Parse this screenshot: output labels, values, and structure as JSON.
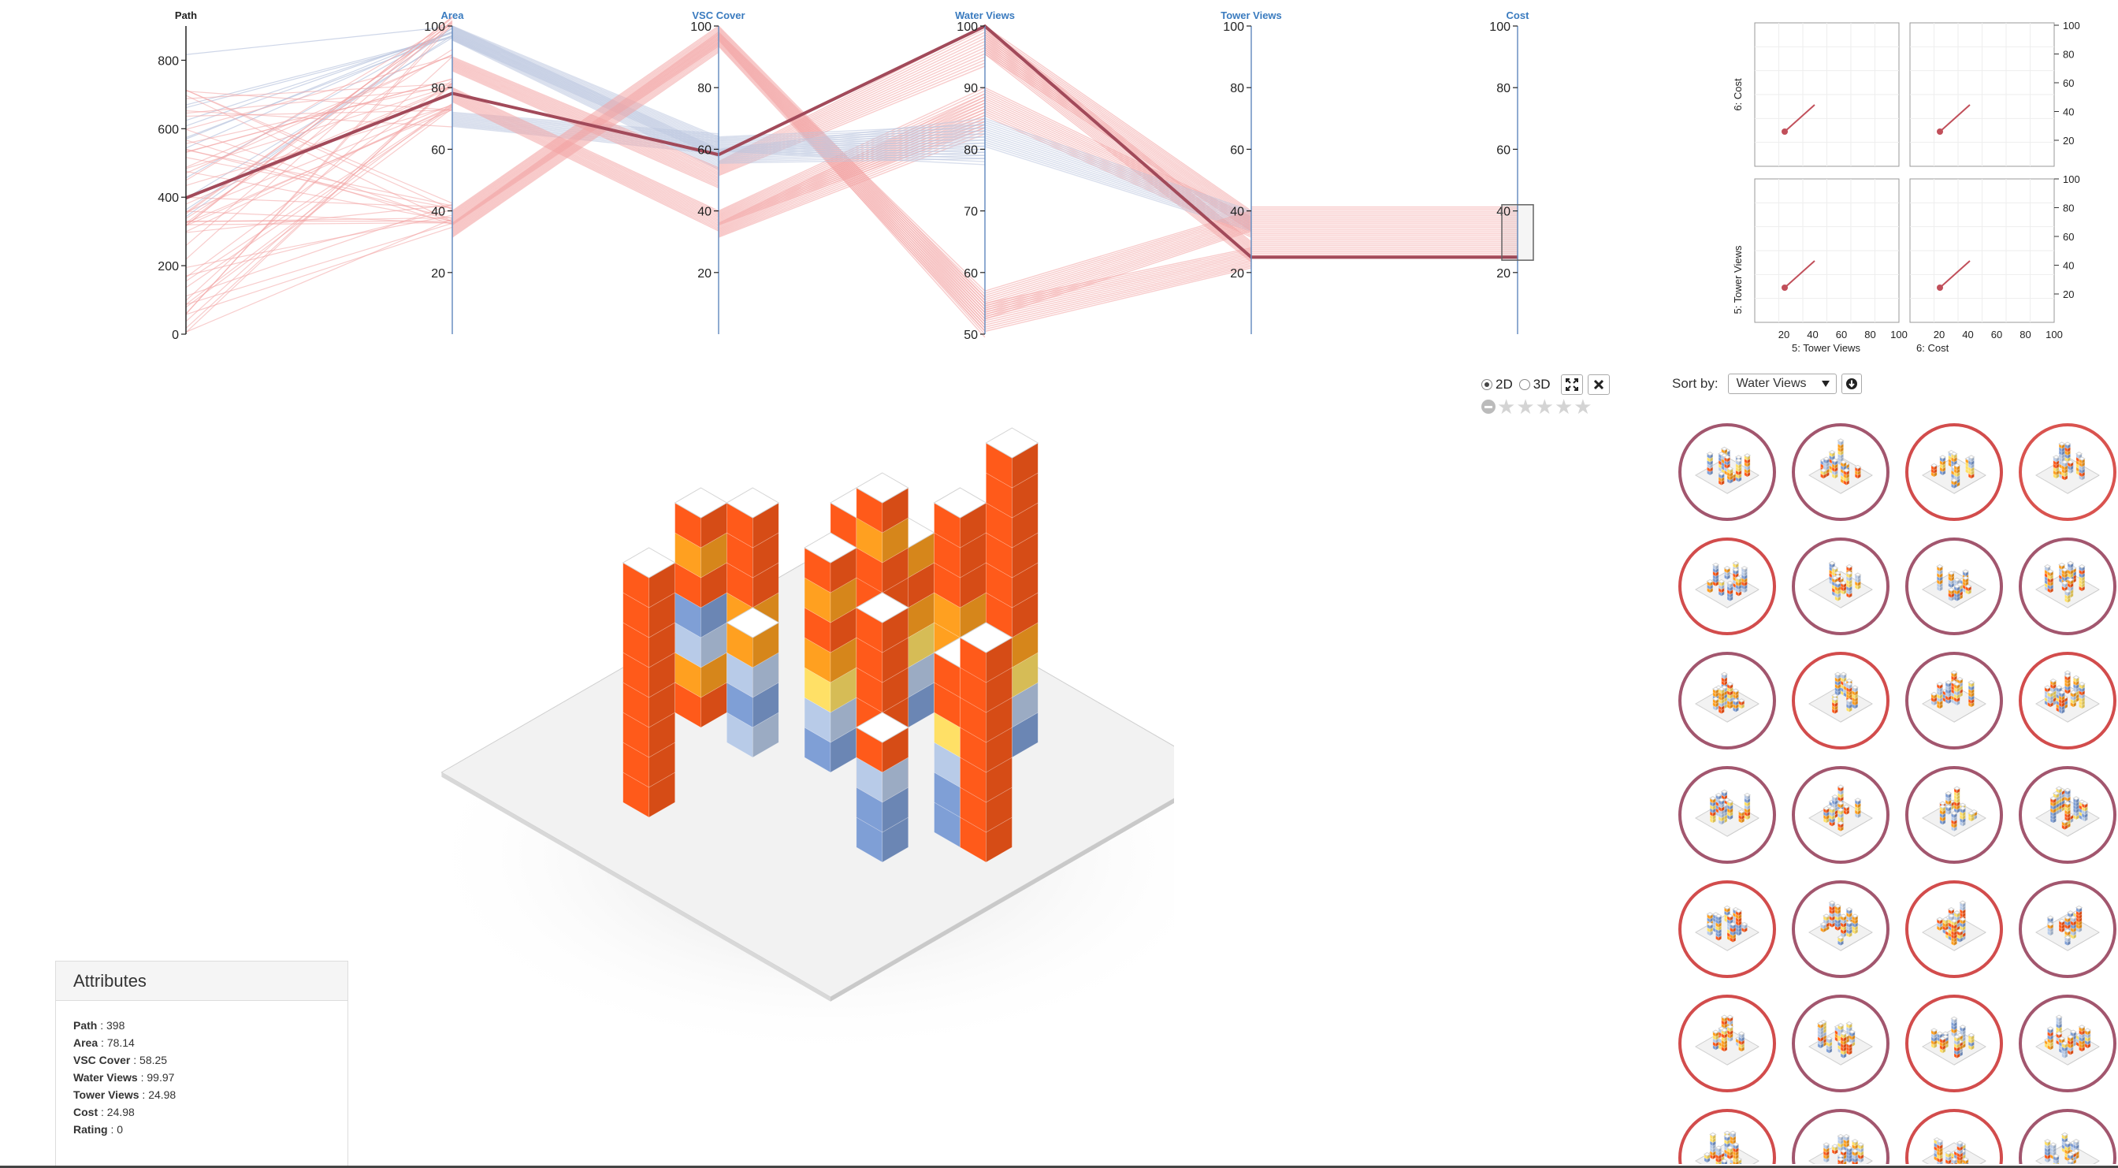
{
  "parallel_coordinates": {
    "axes": [
      {
        "name": "Path",
        "min": 0,
        "max": 900,
        "ticks": [
          "0",
          "200",
          "400",
          "600",
          "800"
        ]
      },
      {
        "name": "Area",
        "min": 0,
        "max": 100,
        "ticks": [
          "20",
          "40",
          "60",
          "80",
          "100"
        ]
      },
      {
        "name": "VSC Cover",
        "min": 0,
        "max": 100,
        "ticks": [
          "20",
          "40",
          "60",
          "80",
          "100"
        ]
      },
      {
        "name": "Water Views",
        "min": 50,
        "max": 100,
        "ticks": [
          "50",
          "60",
          "70",
          "80",
          "90",
          "100"
        ]
      },
      {
        "name": "Tower Views",
        "min": 0,
        "max": 100,
        "ticks": [
          "20",
          "40",
          "60",
          "80",
          "100"
        ]
      },
      {
        "name": "Cost",
        "min": 0,
        "max": 100,
        "ticks": [
          "20",
          "40",
          "60",
          "80",
          "100"
        ]
      }
    ],
    "highlighted": [
      398,
      78.14,
      58.25,
      99.97,
      24.98,
      24.98
    ],
    "colors": {
      "line_light": "#f3a3a3",
      "line_blue": "#b9c4de",
      "highlight": "#a24a5a",
      "axis_name": "#3a7bbf"
    }
  },
  "scatter_matrix": {
    "labels": {
      "row1": "6: Cost",
      "row2": "5: Tower Views",
      "col1": "5: Tower Views",
      "col2": "6: Cost"
    },
    "right_ticks_top": [
      "100",
      "80",
      "60",
      "40",
      "20"
    ],
    "right_ticks_bottom": [
      "100",
      "80",
      "60",
      "40",
      "20"
    ],
    "x_ticks": [
      "20",
      "40",
      "60",
      "80",
      "100"
    ]
  },
  "view_controls": {
    "mode_2d": "2D",
    "mode_3d": "3D",
    "selected_mode": "2D",
    "expand_icon": "expand-icon",
    "close_icon": "close-icon",
    "rating_stars": 5,
    "rating_value": 0
  },
  "sort": {
    "label": "Sort by:",
    "value": "Water Views",
    "direction_icon": "arrow-down-circle-icon"
  },
  "gallery": {
    "ring_colors": [
      "#a2566e",
      "#a2566e",
      "#d24c4c",
      "#d9534f",
      "#d24c4c",
      "#a2566e",
      "#a2566e",
      "#a2566e",
      "#a2566e",
      "#d24c4c",
      "#a2566e",
      "#d24c4c",
      "#a2566e",
      "#a2566e",
      "#a2566e",
      "#a2566e",
      "#d24c4c",
      "#a2566e",
      "#d24c4c",
      "#a2566e",
      "#d24c4c",
      "#a2566e",
      "#d24c4c",
      "#a2566e",
      "#d24c4c",
      "#a2566e",
      "#d24c4c",
      "#a2566e"
    ]
  },
  "attributes": {
    "title": "Attributes",
    "rows": [
      {
        "key": "Path",
        "value": "398"
      },
      {
        "key": "Area",
        "value": "78.14"
      },
      {
        "key": "VSC Cover",
        "value": "58.25"
      },
      {
        "key": "Water Views",
        "value": "99.97"
      },
      {
        "key": "Tower Views",
        "value": "24.98"
      },
      {
        "key": "Cost",
        "value": "24.98"
      },
      {
        "key": "Rating",
        "value": "0"
      }
    ]
  },
  "building_colors": {
    "orange": "#ff5a1a",
    "amber": "#ffa020",
    "yellow": "#ffe066",
    "blue": "#7f9fd6",
    "light_blue": "#b8cbe8"
  }
}
